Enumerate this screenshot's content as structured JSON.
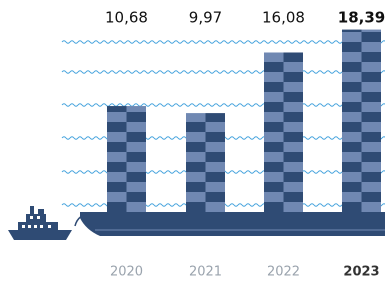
{
  "chart_data": {
    "type": "bar",
    "categories": [
      "2020",
      "2021",
      "2022",
      "2023"
    ],
    "values": [
      10.68,
      9.97,
      16.08,
      18.39
    ],
    "value_labels": [
      "10,68",
      "9,97",
      "16,08",
      "18,39"
    ],
    "colors": [
      "#2f4b74",
      "#7088b2"
    ]
  }
}
